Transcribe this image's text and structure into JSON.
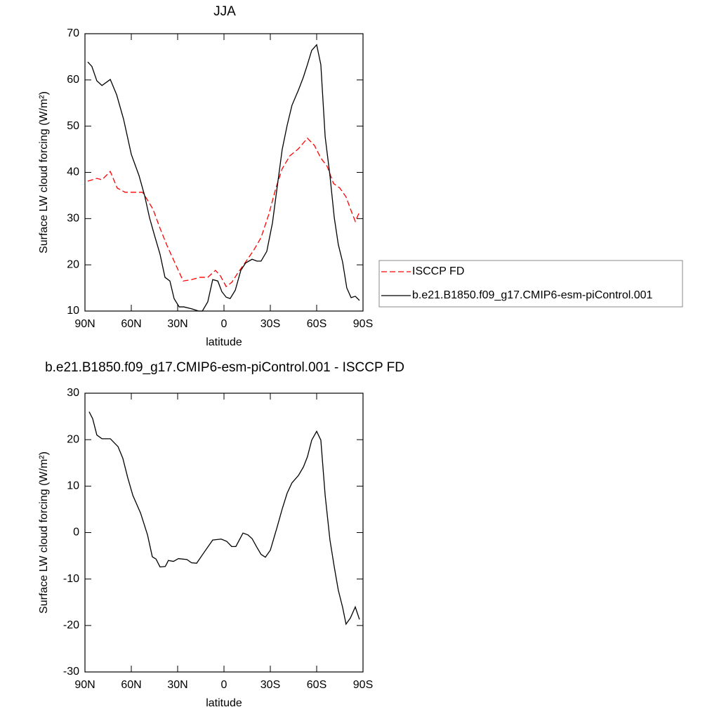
{
  "chart_data": [
    {
      "type": "line",
      "title": "JJA",
      "x_label": "latitude",
      "y_label": "Surface LW cloud forcing (W/m²)",
      "xlim": [
        90,
        -90
      ],
      "xticks": [
        {
          "value": 90,
          "label": "90N"
        },
        {
          "value": 60,
          "label": "60N"
        },
        {
          "value": 30,
          "label": "30N"
        },
        0,
        {
          "value": -30,
          "label": "30S"
        },
        {
          "value": -60,
          "label": "60S"
        },
        {
          "value": -90,
          "label": "90S"
        }
      ],
      "ylim": [
        10,
        70
      ],
      "yticks": [
        10,
        20,
        30,
        40,
        50,
        60,
        70
      ],
      "legend": "right",
      "series": [
        {
          "name": "ISCCP FD",
          "color": "#ff0000",
          "dashed": true,
          "x": [
            88.2,
            82.3,
            79,
            73.6,
            69.1,
            64,
            58.6,
            52.7,
            49.5,
            45.9,
            41.4,
            36.8,
            32.3,
            26.4,
            21,
            15.5,
            10.5,
            5.5,
            2.3,
            -1.4,
            -5,
            -9.5,
            -14,
            -19.5,
            -24,
            -29,
            -33.6,
            -37.7,
            -42.7,
            -48.2,
            -54,
            -58.6,
            -62.7,
            -66.8,
            -70.9,
            -75,
            -79,
            -82.3,
            -85,
            -87.7
          ],
          "values": [
            38.1,
            38.7,
            38.4,
            40.2,
            36.6,
            35.7,
            35.7,
            35.7,
            34,
            32,
            27.9,
            24.1,
            20.8,
            16.5,
            16.8,
            17.3,
            17.3,
            18.8,
            17.6,
            15.3,
            16.2,
            18.5,
            20.6,
            23.3,
            25.9,
            30.9,
            36.6,
            40.8,
            43.6,
            45.1,
            47.4,
            45.8,
            43.1,
            41.3,
            37.6,
            36.6,
            34.7,
            31.7,
            29.4,
            31.4
          ]
        },
        {
          "name": "b.e21.B1850.f09_g17.CMIP6-esm-piControl.001",
          "color": "#000000",
          "dashed": false,
          "x": [
            88.2,
            85.5,
            82.3,
            79,
            73.6,
            69.5,
            65,
            60,
            55,
            51.4,
            48.2,
            45,
            41.4,
            38.2,
            35,
            32.3,
            29,
            26,
            21,
            16.4,
            14,
            10.5,
            7.3,
            4,
            1.4,
            -1.4,
            -4,
            -7.3,
            -10.9,
            -14,
            -18.2,
            -21.4,
            -24,
            -27.7,
            -31.4,
            -34.5,
            -37.7,
            -40.9,
            -44,
            -48.2,
            -51.4,
            -54,
            -56.8,
            -60,
            -62.7,
            -65.5,
            -68.6,
            -71.4,
            -74,
            -76.8,
            -79.5,
            -82.3,
            -85,
            -87.7
          ],
          "values": [
            63.9,
            62.9,
            59.8,
            58.8,
            60.1,
            56.8,
            51.5,
            43.9,
            39.3,
            35,
            30.2,
            26.4,
            22.3,
            17.3,
            16.5,
            12.7,
            10.9,
            10.9,
            10.5,
            10,
            10,
            12,
            16.8,
            16.5,
            14.2,
            13,
            12.7,
            14.5,
            18.8,
            20.4,
            21.2,
            20.8,
            20.8,
            22.9,
            29.1,
            37,
            45,
            50.2,
            54.5,
            57.8,
            60.6,
            63.3,
            66.4,
            67.6,
            63.3,
            47.7,
            39.3,
            30.2,
            24.4,
            20.6,
            15,
            12.9,
            13.2,
            12.3
          ]
        }
      ]
    },
    {
      "type": "line",
      "title": "b.e21.B1850.f09_g17.CMIP6-esm-piControl.001 - ISCCP FD",
      "x_label": "latitude",
      "y_label": "Surface LW cloud forcing (W/m²)",
      "xlim": [
        90,
        -90
      ],
      "xticks": [
        {
          "value": 90,
          "label": "90N"
        },
        {
          "value": 60,
          "label": "60N"
        },
        {
          "value": 30,
          "label": "30N"
        },
        0,
        {
          "value": -30,
          "label": "30S"
        },
        {
          "value": -60,
          "label": "60S"
        },
        {
          "value": -90,
          "label": "90S"
        }
      ],
      "ylim": [
        -30,
        30
      ],
      "yticks": [
        -30,
        -20,
        -10,
        0,
        10,
        20,
        30
      ],
      "series": [
        {
          "color": "#000000",
          "dashed": false,
          "x": [
            87.3,
            85,
            82.3,
            79,
            73.6,
            68.6,
            65.5,
            62.3,
            59,
            54,
            49.5,
            46.4,
            44,
            41.4,
            38,
            36,
            32.7,
            29.5,
            24,
            21,
            17.7,
            13.6,
            7.3,
            1.8,
            -1.8,
            -5,
            -7.7,
            -12.3,
            -15.5,
            -18.2,
            -21,
            -24,
            -26.8,
            -30,
            -34.5,
            -37.7,
            -40.9,
            -44,
            -48.2,
            -51.4,
            -54,
            -56.8,
            -60,
            -62.7,
            -65.5,
            -68.6,
            -71.4,
            -74,
            -76.8,
            -79,
            -81.8,
            -85,
            -87.7
          ],
          "values": [
            26,
            24.5,
            21,
            20.2,
            20.2,
            18.5,
            16,
            11.8,
            8,
            4.2,
            -0.5,
            -5.2,
            -5.7,
            -7.4,
            -7.3,
            -6,
            -6.2,
            -5.6,
            -5.8,
            -6.5,
            -6.6,
            -4.6,
            -1.6,
            -1.4,
            -1.9,
            -3,
            -3,
            -0.1,
            -0.5,
            -1.3,
            -3,
            -4.7,
            -5.3,
            -3.8,
            1.3,
            5.1,
            8.5,
            10.7,
            12.3,
            14.1,
            16.3,
            19.9,
            21.8,
            19.9,
            8,
            -1.6,
            -7.4,
            -12.4,
            -16.1,
            -19.7,
            -18.4,
            -16,
            -18.7
          ]
        }
      ]
    }
  ]
}
